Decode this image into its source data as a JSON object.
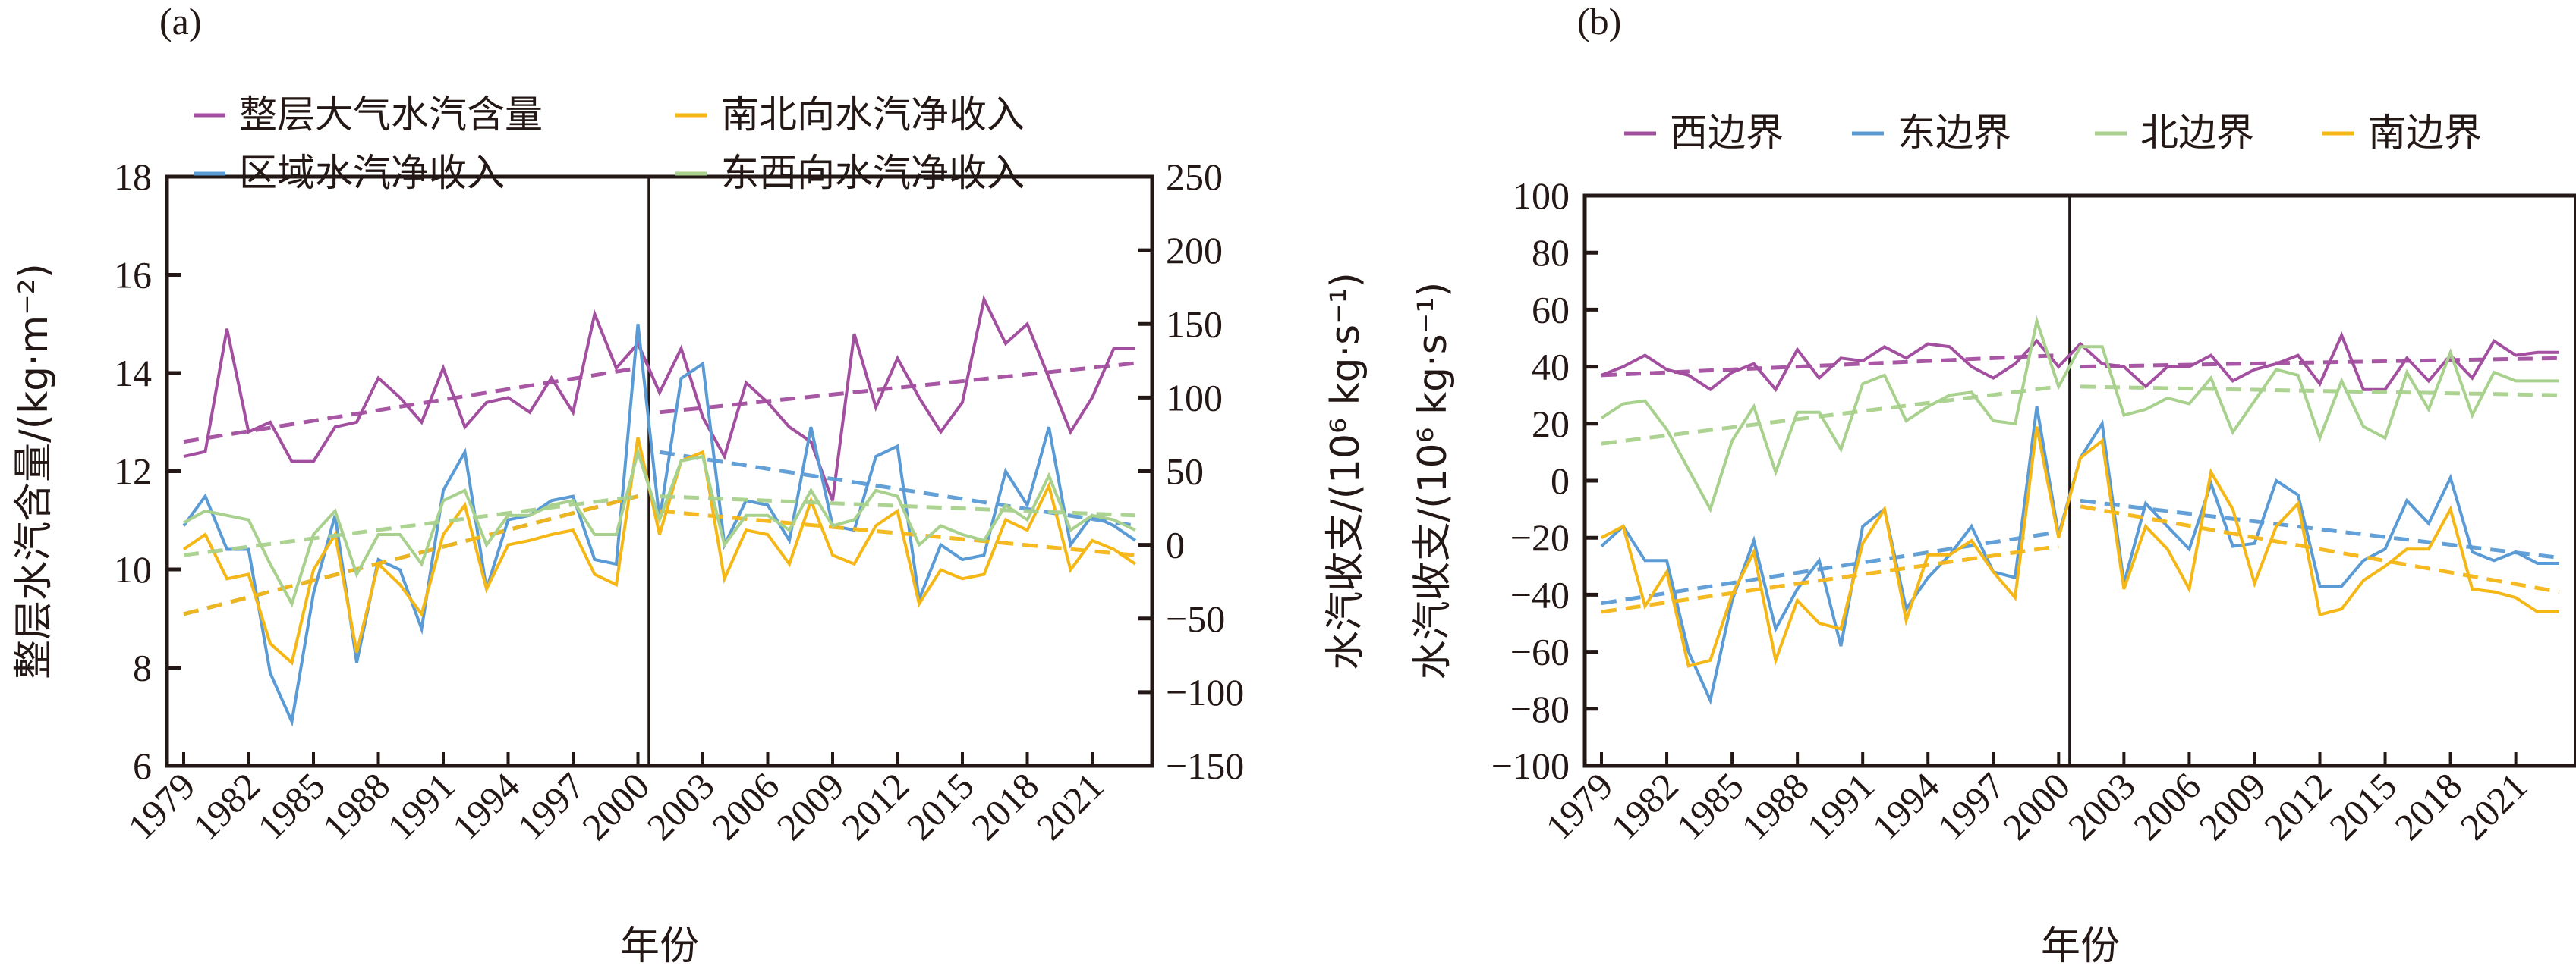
{
  "chart_data": [
    {
      "id": "a",
      "type": "line",
      "panel_label": "(a)",
      "xlabel": "年份",
      "ylabel_left": "整层水汽含量/(kg·m⁻²)",
      "ylabel_right": "水汽收支/(10⁶ kg·s⁻¹)",
      "ylim_left": [
        6,
        18
      ],
      "ylim_right": [
        -150,
        250
      ],
      "yticks_left": [
        6,
        8,
        10,
        12,
        14,
        16,
        18
      ],
      "yticks_right": [
        -150,
        -100,
        -50,
        0,
        50,
        100,
        150,
        200,
        250
      ],
      "xticks": [
        "1979",
        "1982",
        "1985",
        "1988",
        "1991",
        "1994",
        "1997",
        "2000",
        "2003",
        "2006",
        "2009",
        "2012",
        "2015",
        "2018",
        "2021"
      ],
      "x_start": 1979,
      "x_end": 2023,
      "breakpoint_year": 2000,
      "legend_placement": "top",
      "series": [
        {
          "name": "整层大气水汽含量",
          "axis": "left",
          "color": "#a34f9f",
          "values": [
            12.3,
            12.4,
            14.9,
            12.8,
            13.0,
            12.2,
            12.2,
            12.9,
            13.0,
            13.9,
            13.5,
            13.0,
            14.1,
            12.9,
            13.4,
            13.5,
            13.2,
            13.9,
            13.2,
            15.2,
            14.1,
            14.6,
            13.6,
            14.5,
            13.1,
            12.3,
            13.8,
            13.4,
            12.9,
            12.6,
            11.4,
            14.8,
            13.3,
            14.3,
            13.5,
            12.8,
            13.4,
            15.5,
            14.6,
            15.0,
            13.9,
            12.8,
            13.5,
            14.5,
            14.5
          ],
          "trend": [
            [
              1979,
              12.6
            ],
            [
              2000,
              14.1
            ],
            [
              2001,
              13.2
            ],
            [
              2023,
              14.2
            ]
          ]
        },
        {
          "name": "区域水汽净收入",
          "axis": "right",
          "color": "#5b9bd5",
          "values": [
            13,
            33,
            -3,
            -3,
            -87,
            -120,
            -33,
            20,
            -80,
            -10,
            -17,
            -57,
            37,
            63,
            -30,
            17,
            20,
            30,
            33,
            -10,
            -13,
            150,
            17,
            113,
            123,
            0,
            30,
            27,
            3,
            80,
            13,
            10,
            60,
            67,
            -37,
            0,
            -10,
            -7,
            50,
            27,
            80,
            0,
            20,
            13,
            3
          ],
          "trend": [
            [
              1979,
              -47
            ],
            [
              2000,
              33
            ],
            [
              2001,
              63
            ],
            [
              2023,
              13
            ]
          ]
        },
        {
          "name": "南北向水汽净收入",
          "axis": "right",
          "color": "#f5b716",
          "values": [
            -3,
            7,
            -23,
            -20,
            -67,
            -80,
            -17,
            7,
            -73,
            -13,
            -27,
            -47,
            7,
            27,
            -30,
            0,
            3,
            7,
            10,
            -20,
            -27,
            73,
            7,
            57,
            63,
            -23,
            10,
            7,
            -13,
            30,
            -7,
            -13,
            13,
            23,
            -40,
            -17,
            -23,
            -20,
            17,
            10,
            40,
            -17,
            3,
            -3,
            -13
          ],
          "trend": [
            [
              1979,
              -47
            ],
            [
              2000,
              33
            ],
            [
              2001,
              23
            ],
            [
              2023,
              -7
            ]
          ]
        },
        {
          "name": "东西向水汽净收入",
          "axis": "right",
          "color": "#a9d18e",
          "values": [
            15,
            23,
            20,
            17,
            -13,
            -40,
            7,
            23,
            -20,
            7,
            7,
            -13,
            30,
            37,
            0,
            20,
            20,
            27,
            30,
            7,
            7,
            63,
            17,
            57,
            60,
            0,
            20,
            20,
            10,
            37,
            13,
            17,
            37,
            33,
            0,
            13,
            7,
            3,
            27,
            17,
            47,
            10,
            20,
            17,
            10
          ],
          "trend": [
            [
              1979,
              -7
            ],
            [
              2000,
              33
            ],
            [
              2001,
              33
            ],
            [
              2023,
              20
            ]
          ]
        }
      ]
    },
    {
      "id": "b",
      "type": "line",
      "panel_label": "(b)",
      "xlabel": "年份",
      "ylabel_left": "水汽收支/(10⁶ kg·s⁻¹)",
      "ylim": [
        -100,
        100
      ],
      "yticks": [
        -100,
        -80,
        -60,
        -40,
        -20,
        0,
        20,
        40,
        60,
        80,
        100
      ],
      "xticks": [
        "1979",
        "1982",
        "1985",
        "1988",
        "1991",
        "1994",
        "1997",
        "2000",
        "2003",
        "2006",
        "2009",
        "2012",
        "2015",
        "2018",
        "2021"
      ],
      "x_start": 1979,
      "x_end": 2023,
      "breakpoint_year": 2000,
      "legend_placement": "top",
      "series": [
        {
          "name": "西边界",
          "color": "#a34f9f",
          "values": [
            37,
            40,
            44,
            39,
            37,
            32,
            38,
            41,
            32,
            46,
            36,
            43,
            42,
            47,
            43,
            48,
            47,
            40,
            36,
            41,
            49,
            40,
            48,
            41,
            40,
            33,
            40,
            40,
            44,
            35,
            39,
            41,
            44,
            34,
            51,
            32,
            32,
            43,
            35,
            44,
            36,
            49,
            44,
            45,
            45
          ],
          "trend": [
            [
              1979,
              37
            ],
            [
              2000,
              44
            ],
            [
              2001,
              40
            ],
            [
              2023,
              43
            ]
          ]
        },
        {
          "name": "东边界",
          "color": "#5b9bd5",
          "values": [
            -23,
            -16,
            -28,
            -28,
            -60,
            -77,
            -42,
            -21,
            -52,
            -38,
            -28,
            -58,
            -16,
            -10,
            -45,
            -34,
            -26,
            -16,
            -32,
            -34,
            26,
            -19,
            8,
            20,
            -36,
            -8,
            -16,
            -24,
            -1,
            -23,
            -22,
            0,
            -5,
            -37,
            -37,
            -28,
            -24,
            -7,
            -15,
            1,
            -25,
            -28,
            -25,
            -29,
            -29
          ],
          "trend": [
            [
              1979,
              -43
            ],
            [
              2000,
              -18
            ],
            [
              2001,
              -7
            ],
            [
              2023,
              -27
            ]
          ]
        },
        {
          "name": "北边界",
          "color": "#a9d18e",
          "values": [
            22,
            27,
            28,
            18,
            4,
            -10,
            14,
            26,
            3,
            24,
            24,
            11,
            34,
            37,
            21,
            26,
            30,
            31,
            21,
            20,
            56,
            33,
            47,
            47,
            23,
            25,
            29,
            27,
            36,
            17,
            28,
            39,
            37,
            15,
            35,
            19,
            15,
            38,
            25,
            45,
            23,
            38,
            35,
            35,
            35
          ],
          "trend": [
            [
              1979,
              13
            ],
            [
              2000,
              33
            ],
            [
              2001,
              33
            ],
            [
              2023,
              30
            ]
          ]
        },
        {
          "name": "南边界",
          "color": "#f5b716",
          "values": [
            -20,
            -16,
            -44,
            -32,
            -65,
            -63,
            -40,
            -25,
            -63,
            -42,
            -50,
            -52,
            -22,
            -10,
            -49,
            -26,
            -26,
            -21,
            -32,
            -41,
            19,
            -20,
            8,
            14,
            -38,
            -16,
            -24,
            -38,
            3,
            -10,
            -36,
            -16,
            -8,
            -47,
            -45,
            -35,
            -30,
            -24,
            -24,
            -10,
            -38,
            -39,
            -41,
            -46,
            -46
          ],
          "trend": [
            [
              1979,
              -46
            ],
            [
              2000,
              -23
            ],
            [
              2001,
              -9
            ],
            [
              2023,
              -39
            ]
          ]
        }
      ]
    }
  ]
}
